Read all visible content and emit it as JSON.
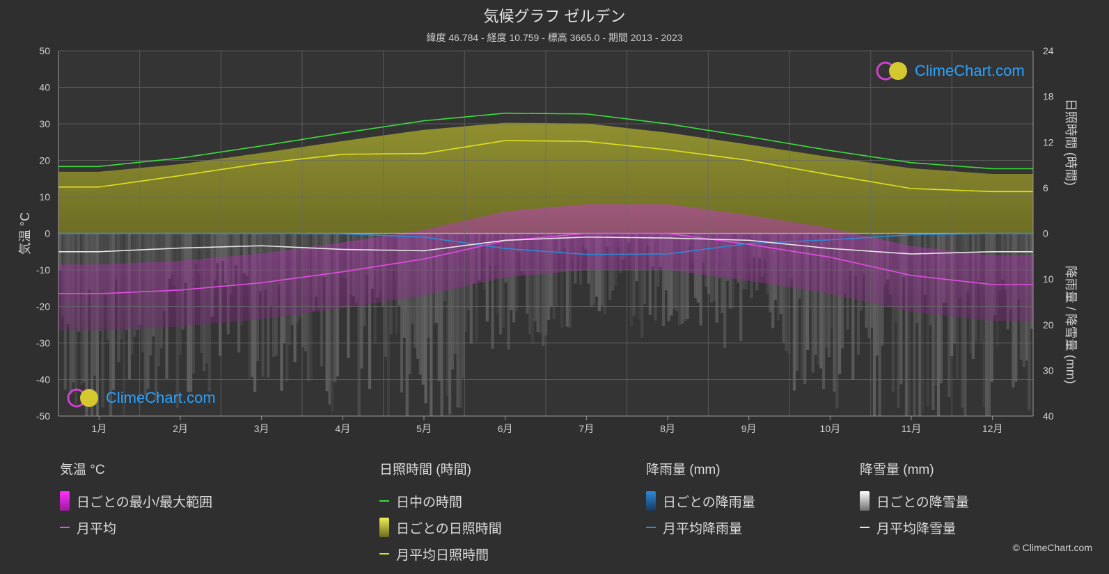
{
  "title": "気候グラフ ゼルデン",
  "subtitle": "緯度 46.784 - 経度 10.759 - 標高 3665.0 - 期間 2013 - 2023",
  "copyright": "© ClimeChart.com",
  "logo_text": "ClimeChart.com",
  "chart_data": {
    "type": "line",
    "x": [
      "1月",
      "2月",
      "3月",
      "4月",
      "5月",
      "6月",
      "7月",
      "8月",
      "9月",
      "10月",
      "11月",
      "12月"
    ],
    "axes": {
      "left": {
        "label": "気温 °C",
        "range": [
          -50,
          50
        ],
        "ticks": [
          50,
          40,
          30,
          20,
          10,
          0,
          -10,
          -20,
          -30,
          -40,
          -50
        ]
      },
      "right_top": {
        "label": "日照時間 (時間)",
        "range": [
          0,
          24
        ],
        "ticks": [
          24,
          18,
          12,
          6,
          0
        ]
      },
      "right_bottom": {
        "label": "降雨量 / 降雪量 (mm)",
        "range": [
          0,
          40
        ],
        "ticks": [
          0,
          10,
          20,
          30,
          40
        ]
      }
    },
    "series": [
      {
        "name": "日中の時間",
        "axis": "sunshine",
        "color": "#3ddc3d",
        "values": [
          8.8,
          9.9,
          11.5,
          13.2,
          14.8,
          15.8,
          15.7,
          14.4,
          12.7,
          10.9,
          9.3,
          8.5
        ]
      },
      {
        "name": "月平均日照時間",
        "axis": "sunshine",
        "color": "#e0e020",
        "values": [
          6.1,
          7.6,
          9.2,
          10.4,
          10.5,
          12.2,
          12.1,
          11.0,
          9.6,
          7.7,
          5.9,
          5.5
        ]
      },
      {
        "name": "月平均",
        "axis": "temperature",
        "color": "#e04ee0",
        "values": [
          -16.5,
          -15.5,
          -13.5,
          -10.5,
          -7,
          -2,
          0,
          0,
          -3,
          -6.5,
          -11.5,
          -14
        ]
      },
      {
        "name": "月平均降雨量",
        "axis": "precipitation",
        "color": "#2a8ad8",
        "values": [
          0,
          0,
          0,
          0.1,
          0.8,
          3.3,
          4.6,
          4.5,
          2.2,
          1.4,
          0.3,
          0
        ]
      },
      {
        "name": "月平均降雪量",
        "axis": "precipitation",
        "color": "#e6e6e6",
        "values": [
          4.0,
          3.2,
          2.7,
          3.5,
          3.8,
          1.5,
          0.8,
          1.0,
          1.5,
          3.3,
          4.5,
          4.0
        ]
      }
    ],
    "grid": true
  },
  "legend": [
    {
      "heading": "気温 °C",
      "items": [
        {
          "kind": "box",
          "label": "日ごとの最小/最大範囲",
          "color": "#d020d0"
        },
        {
          "kind": "line",
          "label": "月平均",
          "color": "#e04ee0"
        }
      ]
    },
    {
      "heading": "日照時間 (時間)",
      "items": [
        {
          "kind": "line",
          "label": "日中の時間",
          "color": "#3ddc3d"
        },
        {
          "kind": "box",
          "label": "日ごとの日照時間",
          "color": "#c8c832"
        },
        {
          "kind": "line",
          "label": "月平均日照時間",
          "color": "#e0e020"
        }
      ]
    },
    {
      "heading": "降雨量 (mm)",
      "items": [
        {
          "kind": "box",
          "label": "日ごとの降雨量",
          "color": "#2a8ad8"
        },
        {
          "kind": "line",
          "label": "月平均降雨量",
          "color": "#2a8ad8"
        }
      ]
    },
    {
      "heading": "降雪量 (mm)",
      "items": [
        {
          "kind": "box",
          "label": "日ごとの降雪量",
          "color": "#e0e0e0"
        },
        {
          "kind": "line",
          "label": "月平均降雪量",
          "color": "#e6e6e6"
        }
      ]
    }
  ]
}
